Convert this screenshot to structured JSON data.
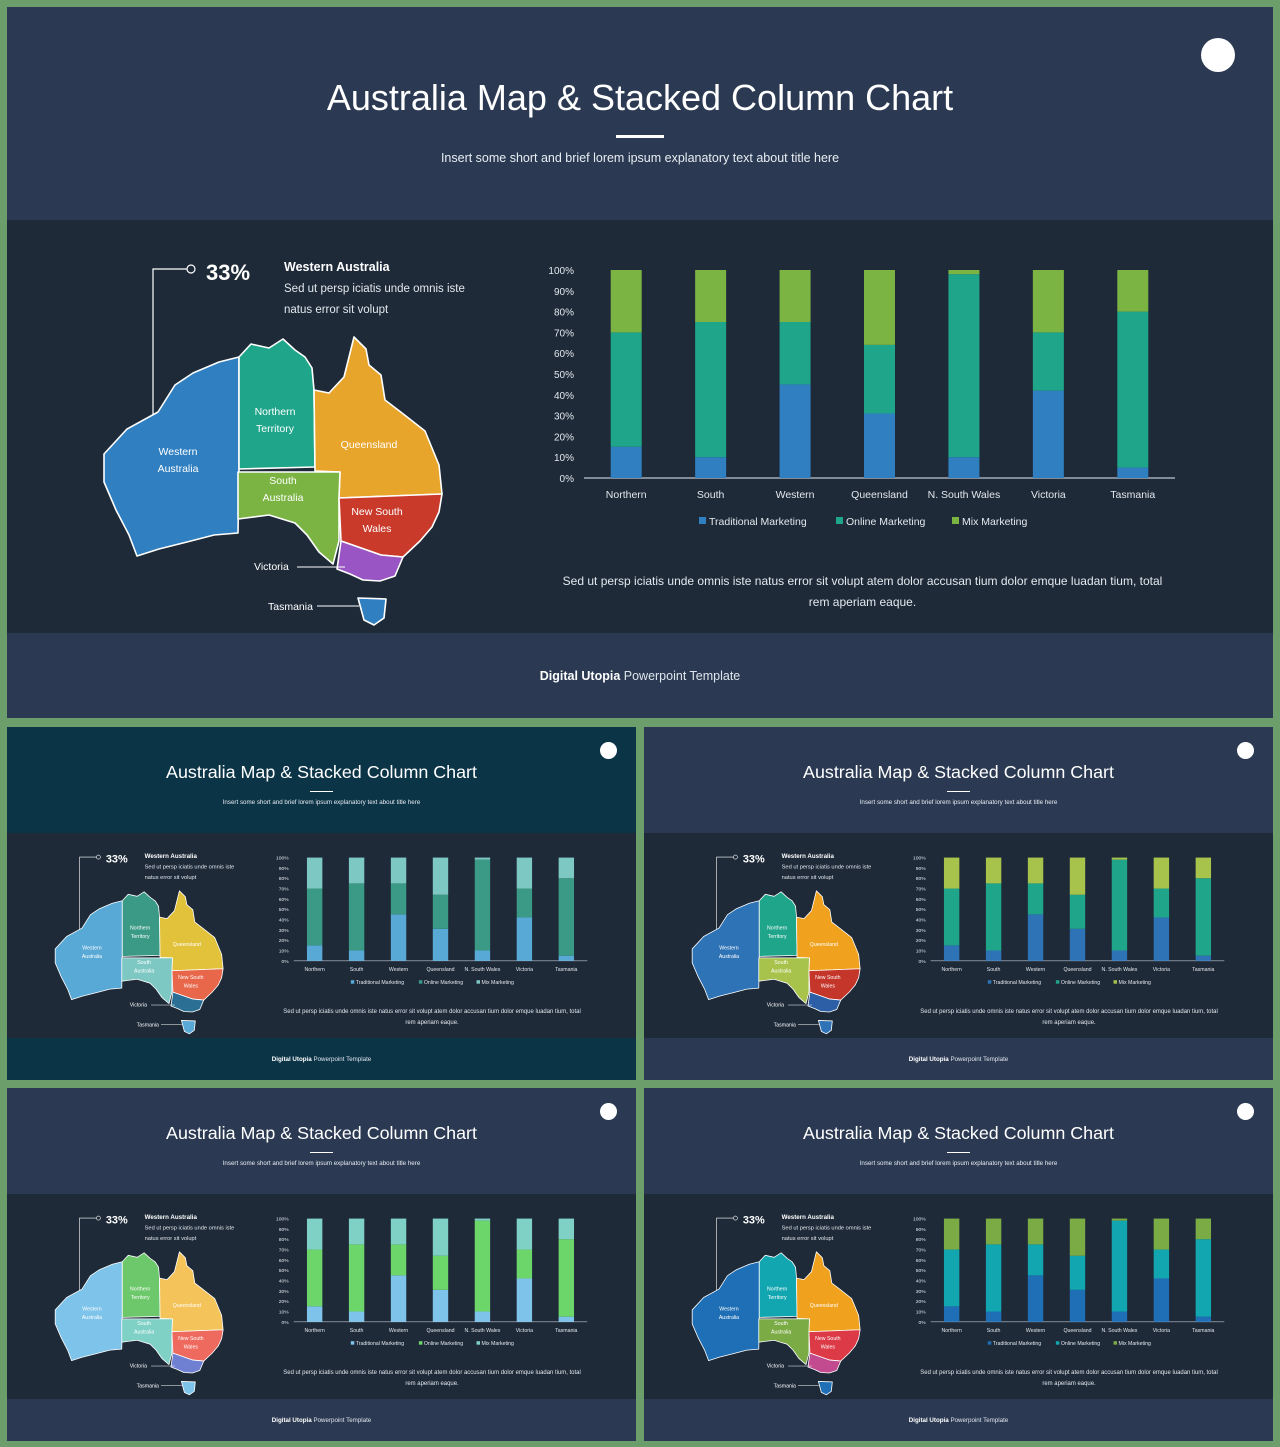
{
  "slide": {
    "title": "Australia Map & Stacked Column Chart",
    "subtitle": "Insert some short and brief lorem ipsum explanatory text about title here",
    "footer_bold": "Digital Utopia",
    "footer_rest": " Powerpoint Template",
    "callout": {
      "percent": "33%",
      "heading": "Western Australia",
      "line1": "Sed ut persp iciatis unde omnis iste",
      "line2": "natus error sit volupt"
    },
    "map_labels": {
      "western_1": "Western",
      "western_2": "Australia",
      "northern_1": "Northern",
      "northern_2": "Territory",
      "queensland": "Queensland",
      "south_1": "South",
      "south_2": "Australia",
      "nsw_1": "New South",
      "nsw_2": "Wales",
      "victoria": "Victoria",
      "tasmania": "Tasmania"
    },
    "description_line1": "Sed ut persp iciatis unde omnis iste natus error sit volupt atem dolor accusan tium dolor emque luadan tium, total",
    "description_line2": "rem aperiam eaque."
  },
  "chart_data": {
    "type": "bar",
    "stacked": true,
    "categories": [
      "Northern",
      "South",
      "Western",
      "Queensland",
      "N. South Wales",
      "Victoria",
      "Tasmania"
    ],
    "series": [
      {
        "name": "Traditional Marketing",
        "values": [
          15,
          10,
          45,
          31,
          10,
          42,
          5
        ]
      },
      {
        "name": "Online Marketing",
        "values": [
          55,
          65,
          30,
          33,
          88,
          28,
          75
        ]
      },
      {
        "name": "Mix Marketing",
        "values": [
          30,
          25,
          25,
          36,
          2,
          30,
          20
        ]
      }
    ],
    "ylim": [
      0,
      100
    ],
    "yticks": [
      "0%",
      "10%",
      "20%",
      "30%",
      "40%",
      "50%",
      "60%",
      "70%",
      "80%",
      "90%",
      "100%"
    ],
    "grid": false,
    "legend": "bottom"
  },
  "variants": [
    {
      "name": "main",
      "header": "#2b3a52",
      "body": "#1e2a38",
      "footer": "#2b3a52",
      "map": [
        "#2f7fc1",
        "#1fa58a",
        "#e8a52b",
        "#7bb443",
        "#c93a2b",
        "#9a55c4",
        "#2f7fc1"
      ],
      "bars": [
        "#2f7fc1",
        "#1fa58a",
        "#7bb443"
      ]
    },
    {
      "name": "teal",
      "header": "#0c3447",
      "body": "#1e2a38",
      "footer": "#0c3447",
      "map": [
        "#58a9d6",
        "#3b9a86",
        "#e2c23a",
        "#7ec8c4",
        "#e8664a",
        "#2b6f94",
        "#58a9d6"
      ],
      "bars": [
        "#58a9d6",
        "#3b9a86",
        "#7ec8c4"
      ]
    },
    {
      "name": "dark",
      "header": "#2b3a52",
      "body": "#1e2a38",
      "footer": "#2b3a52",
      "map": [
        "#2f73b7",
        "#1fa58a",
        "#f0a21e",
        "#a8c34b",
        "#c4352a",
        "#2d5fa7",
        "#2f73b7"
      ],
      "bars": [
        "#2f73b7",
        "#1fa58a",
        "#a8c34b"
      ]
    },
    {
      "name": "light",
      "header": "#2b3a52",
      "body": "#1e2a38",
      "footer": "#2b3a52",
      "map": [
        "#7ec3ea",
        "#6cc86a",
        "#f4c45a",
        "#7fd1c6",
        "#ef6a5e",
        "#6f7fd1",
        "#7ec3ea"
      ],
      "bars": [
        "#7ec3ea",
        "#6cd66a",
        "#7fd1c6"
      ]
    },
    {
      "name": "ocean",
      "header": "#2b3a52",
      "body": "#1e2a38",
      "footer": "#2b3a52",
      "map": [
        "#1e6fb5",
        "#11a6b0",
        "#f0a21e",
        "#7bab44",
        "#dd3a47",
        "#c24a8e",
        "#1e6fb5"
      ],
      "bars": [
        "#1e6fb5",
        "#11a6b0",
        "#7bab44"
      ]
    }
  ]
}
